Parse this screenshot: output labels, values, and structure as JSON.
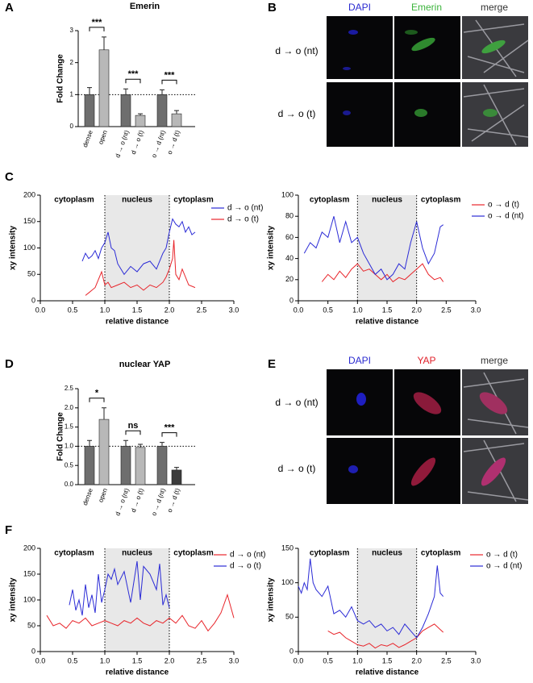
{
  "panel_labels": [
    "A",
    "B",
    "C",
    "D",
    "E",
    "F"
  ],
  "image_panels": [
    {
      "columns": [
        "DAPI",
        "Emerin",
        "merge"
      ],
      "rows": [
        "d → o (nt)",
        "d → o (t)"
      ]
    },
    {
      "columns": [
        "DAPI",
        "YAP",
        "merge"
      ],
      "rows": [
        "d → o (nt)",
        "d → o (t)"
      ]
    }
  ],
  "chart_data": [
    {
      "type": "bar",
      "title": "Emerin",
      "ylabel": "Fold Change",
      "categories": [
        "dense",
        "open",
        "d → o (nt)",
        "d → o (t)",
        "o → d (nt)",
        "o → d (t)"
      ],
      "values": [
        1.0,
        2.4,
        1.0,
        0.35,
        1.0,
        0.4
      ],
      "errors": [
        0.22,
        0.4,
        0.18,
        0.05,
        0.15,
        0.1
      ],
      "colors": [
        "#6e6e6e",
        "#b8b8b8",
        "#6e6e6e",
        "#b8b8b8",
        "#6e6e6e",
        "#b8b8b8"
      ],
      "significance": [
        "***",
        "***",
        "***"
      ],
      "reference_line": 1,
      "ylim": [
        0,
        3
      ],
      "yticks": [
        0,
        1,
        2,
        3
      ]
    },
    {
      "type": "line",
      "xlabel": "relative distance",
      "ylabel": "xy intensity",
      "annotations": [
        "cytoplasm",
        "nucleus",
        "cytoplasm"
      ],
      "shade": [
        1.0,
        2.0
      ],
      "xlim": [
        0,
        3
      ],
      "xticks": [
        {
          "value": 0,
          "label": "0.0"
        },
        0.5,
        {
          "value": 1,
          "label": "1.0"
        },
        1.5,
        {
          "value": 2,
          "label": "2.0"
        },
        2.5,
        {
          "value": 3,
          "label": "3.0"
        }
      ],
      "ylim": [
        0,
        200
      ],
      "yticks": [
        0,
        50,
        100,
        150,
        200
      ],
      "series": [
        {
          "name": "d → o (nt)",
          "color": "#2b2bd6",
          "x": [
            0.65,
            0.7,
            0.75,
            0.8,
            0.85,
            0.9,
            0.95,
            1.0,
            1.05,
            1.1,
            1.15,
            1.2,
            1.3,
            1.4,
            1.5,
            1.6,
            1.7,
            1.8,
            1.9,
            1.95,
            2.0,
            2.05,
            2.1,
            2.15,
            2.2,
            2.25,
            2.3,
            2.35,
            2.4
          ],
          "values": [
            75,
            90,
            80,
            85,
            95,
            80,
            100,
            110,
            130,
            100,
            95,
            70,
            50,
            65,
            55,
            70,
            75,
            60,
            90,
            100,
            130,
            155,
            145,
            140,
            150,
            130,
            140,
            125,
            130
          ]
        },
        {
          "name": "d → o (t)",
          "color": "#e8252b",
          "x": [
            0.7,
            0.75,
            0.8,
            0.85,
            0.9,
            0.95,
            1.0,
            1.05,
            1.1,
            1.2,
            1.3,
            1.4,
            1.5,
            1.6,
            1.7,
            1.8,
            1.9,
            1.95,
            2.0,
            2.05,
            2.07,
            2.1,
            2.15,
            2.2,
            2.3,
            2.4
          ],
          "values": [
            10,
            15,
            20,
            25,
            40,
            55,
            30,
            35,
            25,
            30,
            35,
            25,
            30,
            20,
            30,
            25,
            35,
            45,
            60,
            80,
            115,
            50,
            40,
            60,
            30,
            25
          ]
        }
      ]
    },
    {
      "type": "line",
      "xlabel": "relative distance",
      "ylabel": "xy intensity",
      "annotations": [
        "cytoplasm",
        "nucleus",
        "cytoplasm"
      ],
      "shade": [
        1.0,
        2.0
      ],
      "xlim": [
        0,
        3
      ],
      "xticks": [
        {
          "value": 0,
          "label": "0.0"
        },
        0.5,
        {
          "value": 1,
          "label": "1.0"
        },
        1.5,
        {
          "value": 2,
          "label": "2.0"
        },
        2.5,
        {
          "value": 3,
          "label": "3.0"
        }
      ],
      "ylim": [
        0,
        100
      ],
      "yticks": [
        0,
        20,
        40,
        60,
        80,
        100
      ],
      "series": [
        {
          "name": "o → d (t)",
          "color": "#e8252b",
          "x": [
            0.4,
            0.5,
            0.6,
            0.7,
            0.8,
            0.9,
            1.0,
            1.1,
            1.2,
            1.3,
            1.4,
            1.5,
            1.6,
            1.7,
            1.8,
            1.9,
            2.0,
            2.1,
            2.2,
            2.3,
            2.4,
            2.45
          ],
          "values": [
            18,
            25,
            20,
            28,
            22,
            30,
            35,
            28,
            30,
            25,
            20,
            25,
            18,
            22,
            20,
            25,
            30,
            35,
            25,
            20,
            22,
            18
          ]
        },
        {
          "name": "o → d (nt)",
          "color": "#2b2bd6",
          "x": [
            0.1,
            0.2,
            0.3,
            0.4,
            0.5,
            0.6,
            0.7,
            0.8,
            0.9,
            1.0,
            1.1,
            1.2,
            1.3,
            1.4,
            1.5,
            1.6,
            1.7,
            1.8,
            1.9,
            2.0,
            2.1,
            2.2,
            2.3,
            2.4,
            2.45
          ],
          "values": [
            45,
            55,
            50,
            65,
            60,
            80,
            55,
            75,
            55,
            60,
            45,
            35,
            25,
            30,
            20,
            25,
            35,
            30,
            55,
            75,
            50,
            35,
            45,
            70,
            72
          ]
        }
      ]
    },
    {
      "type": "bar",
      "title": "nuclear YAP",
      "ylabel": "Fold Change",
      "categories": [
        "dense",
        "open",
        "d → o (nt)",
        "d → o (t)",
        "o → d (nt)",
        "o → d (t)"
      ],
      "values": [
        1.0,
        1.7,
        1.0,
        0.97,
        1.0,
        0.38
      ],
      "errors": [
        0.15,
        0.3,
        0.15,
        0.08,
        0.1,
        0.07
      ],
      "colors": [
        "#6e6e6e",
        "#b8b8b8",
        "#6e6e6e",
        "#b8b8b8",
        "#6e6e6e",
        "#3c3c3c"
      ],
      "significance": [
        "*",
        "ns",
        "***"
      ],
      "reference_line": 1,
      "ylim": [
        0,
        2.5
      ],
      "yticks": [
        {
          "value": 0,
          "label": "0.0"
        },
        0.5,
        {
          "value": 1,
          "label": "1.0"
        },
        1.5,
        {
          "value": 2,
          "label": "2.0"
        },
        2.5
      ]
    },
    {
      "type": "line",
      "xlabel": "relative distance",
      "ylabel": "xy intensity",
      "annotations": [
        "cytoplasm",
        "nucleus",
        "cytoplasm"
      ],
      "shade": [
        1.0,
        2.0
      ],
      "xlim": [
        0,
        3
      ],
      "xticks": [
        {
          "value": 0,
          "label": "0.0"
        },
        0.5,
        {
          "value": 1,
          "label": "1.0"
        },
        1.5,
        {
          "value": 2,
          "label": "2.0"
        },
        2.5,
        {
          "value": 3,
          "label": "3.0"
        }
      ],
      "ylim": [
        0,
        200
      ],
      "yticks": [
        0,
        50,
        100,
        150,
        200
      ],
      "series": [
        {
          "name": "d → o (nt)",
          "color": "#e8252b",
          "x": [
            0.1,
            0.2,
            0.3,
            0.4,
            0.5,
            0.6,
            0.7,
            0.8,
            0.9,
            1.0,
            1.1,
            1.2,
            1.3,
            1.4,
            1.5,
            1.6,
            1.7,
            1.8,
            1.9,
            2.0,
            2.1,
            2.2,
            2.3,
            2.4,
            2.5,
            2.6,
            2.7,
            2.8,
            2.9,
            3.0
          ],
          "values": [
            70,
            50,
            55,
            45,
            60,
            55,
            65,
            50,
            55,
            60,
            55,
            50,
            60,
            55,
            65,
            55,
            50,
            60,
            55,
            65,
            55,
            70,
            50,
            45,
            60,
            40,
            55,
            75,
            110,
            65
          ]
        },
        {
          "name": "d → o (t)",
          "color": "#2b2bd6",
          "x": [
            0.45,
            0.5,
            0.55,
            0.6,
            0.65,
            0.7,
            0.75,
            0.8,
            0.85,
            0.9,
            0.95,
            1.0,
            1.05,
            1.1,
            1.15,
            1.2,
            1.3,
            1.4,
            1.5,
            1.55,
            1.6,
            1.7,
            1.8,
            1.85,
            1.9,
            1.95,
            2.0
          ],
          "values": [
            90,
            120,
            80,
            100,
            70,
            130,
            85,
            110,
            75,
            150,
            95,
            120,
            150,
            140,
            160,
            130,
            155,
            95,
            175,
            100,
            165,
            150,
            120,
            170,
            90,
            110,
            85
          ]
        }
      ]
    },
    {
      "type": "line",
      "xlabel": "relative distance",
      "ylabel": "xy intensity",
      "annotations": [
        "cytoplasm",
        "nucleus",
        "cytoplasm"
      ],
      "shade": [
        1.0,
        2.0
      ],
      "xlim": [
        0,
        3
      ],
      "xticks": [
        {
          "value": 0,
          "label": "0.0"
        },
        0.5,
        {
          "value": 1,
          "label": "1.0"
        },
        1.5,
        {
          "value": 2,
          "label": "2.0"
        },
        2.5,
        {
          "value": 3,
          "label": "3.0"
        }
      ],
      "ylim": [
        0,
        150
      ],
      "yticks": [
        0,
        50,
        100,
        150
      ],
      "series": [
        {
          "name": "o → d (t)",
          "color": "#e8252b",
          "x": [
            0.5,
            0.6,
            0.7,
            0.8,
            0.9,
            1.0,
            1.1,
            1.2,
            1.3,
            1.4,
            1.5,
            1.6,
            1.7,
            1.8,
            1.9,
            2.0,
            2.1,
            2.2,
            2.3,
            2.4,
            2.45
          ],
          "values": [
            30,
            25,
            28,
            20,
            15,
            10,
            8,
            12,
            5,
            10,
            8,
            12,
            6,
            10,
            15,
            20,
            30,
            35,
            40,
            32,
            28
          ]
        },
        {
          "name": "o → d (nt)",
          "color": "#2b2bd6",
          "x": [
            0,
            0.05,
            0.1,
            0.15,
            0.2,
            0.25,
            0.3,
            0.4,
            0.5,
            0.6,
            0.7,
            0.8,
            0.9,
            1.0,
            1.1,
            1.2,
            1.3,
            1.4,
            1.5,
            1.6,
            1.7,
            1.8,
            1.9,
            2.0,
            2.1,
            2.2,
            2.3,
            2.35,
            2.4,
            2.45
          ],
          "values": [
            95,
            85,
            100,
            90,
            135,
            100,
            90,
            80,
            95,
            55,
            60,
            50,
            65,
            45,
            40,
            45,
            35,
            40,
            30,
            35,
            25,
            40,
            30,
            20,
            35,
            55,
            80,
            125,
            85,
            80
          ]
        }
      ]
    }
  ]
}
